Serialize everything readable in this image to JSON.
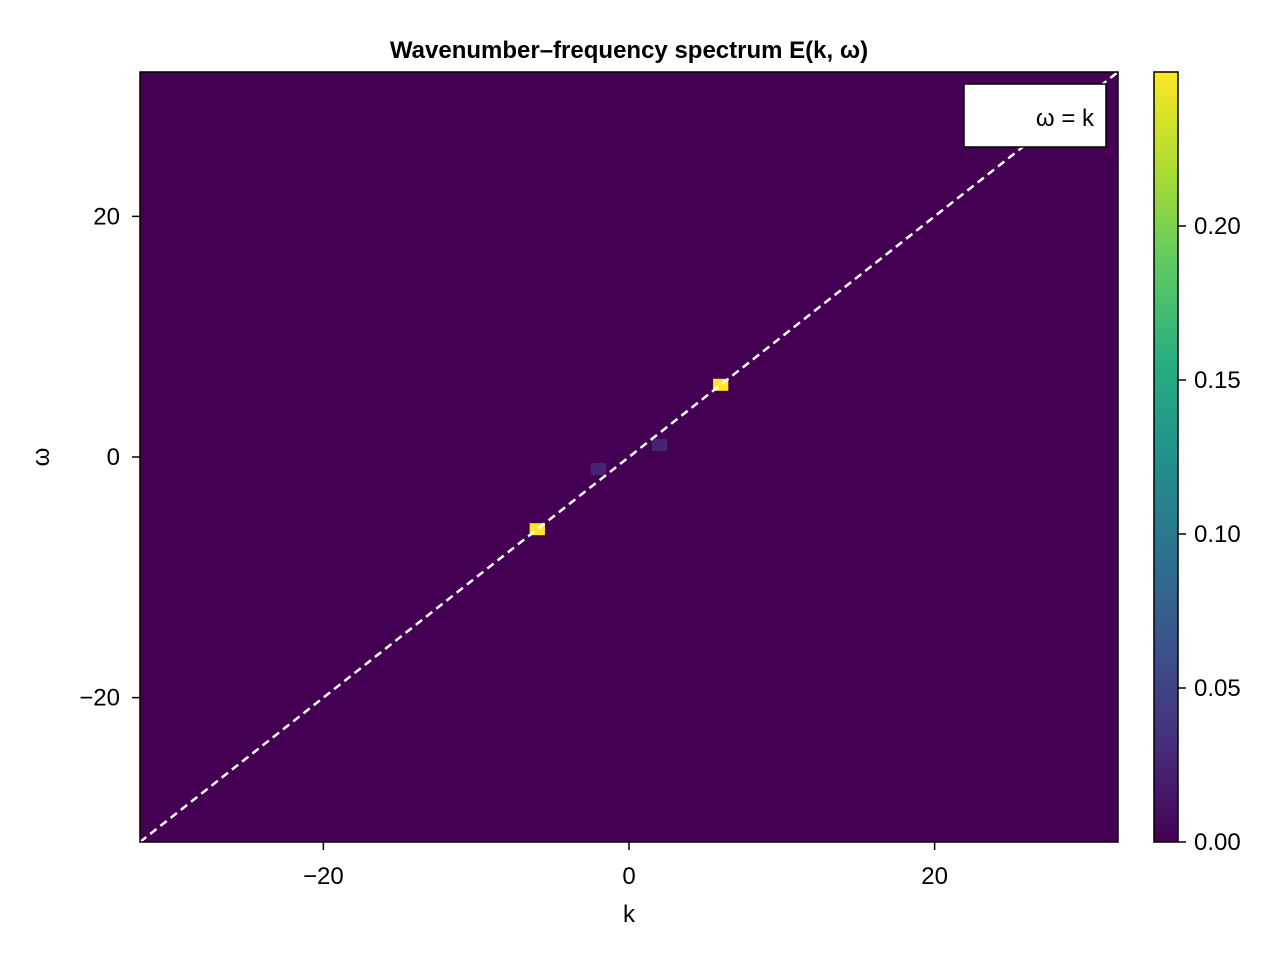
{
  "chart_data": {
    "type": "heatmap",
    "title": "Wavenumber–frequency spectrum E(k, ω)",
    "xlabel": "k",
    "ylabel": "ω",
    "xlim": [
      -32,
      32
    ],
    "ylim": [
      -32,
      32
    ],
    "xticks": [
      -20,
      0,
      20
    ],
    "xtick_labels": [
      "−20",
      "0",
      "20"
    ],
    "yticks": [
      -20,
      0,
      20
    ],
    "ytick_labels": [
      "−20",
      "0",
      "20"
    ],
    "background_value": 0.0,
    "cells": [
      {
        "k": -6,
        "omega": -6,
        "value": 0.25
      },
      {
        "k": 6,
        "omega": 6,
        "value": 0.25
      },
      {
        "k": -2,
        "omega": -1,
        "value": 0.025
      },
      {
        "k": 2,
        "omega": 1,
        "value": 0.025
      }
    ],
    "cell_size": 1,
    "colormap": "viridis",
    "colorbar": {
      "range": [
        0,
        0.25
      ],
      "ticks": [
        0.0,
        0.05,
        0.1,
        0.15,
        0.2
      ],
      "tick_labels": [
        "0.00",
        "0.05",
        "0.10",
        "0.15",
        "0.20"
      ]
    },
    "overlay_line": {
      "label": "ω = k",
      "style": "dashed",
      "color": "#ffffff",
      "points": [
        [
          -32,
          -32
        ],
        [
          32,
          32
        ]
      ]
    },
    "legend": {
      "position": "top-right",
      "entries": [
        "ω = k"
      ]
    },
    "grid": false
  }
}
